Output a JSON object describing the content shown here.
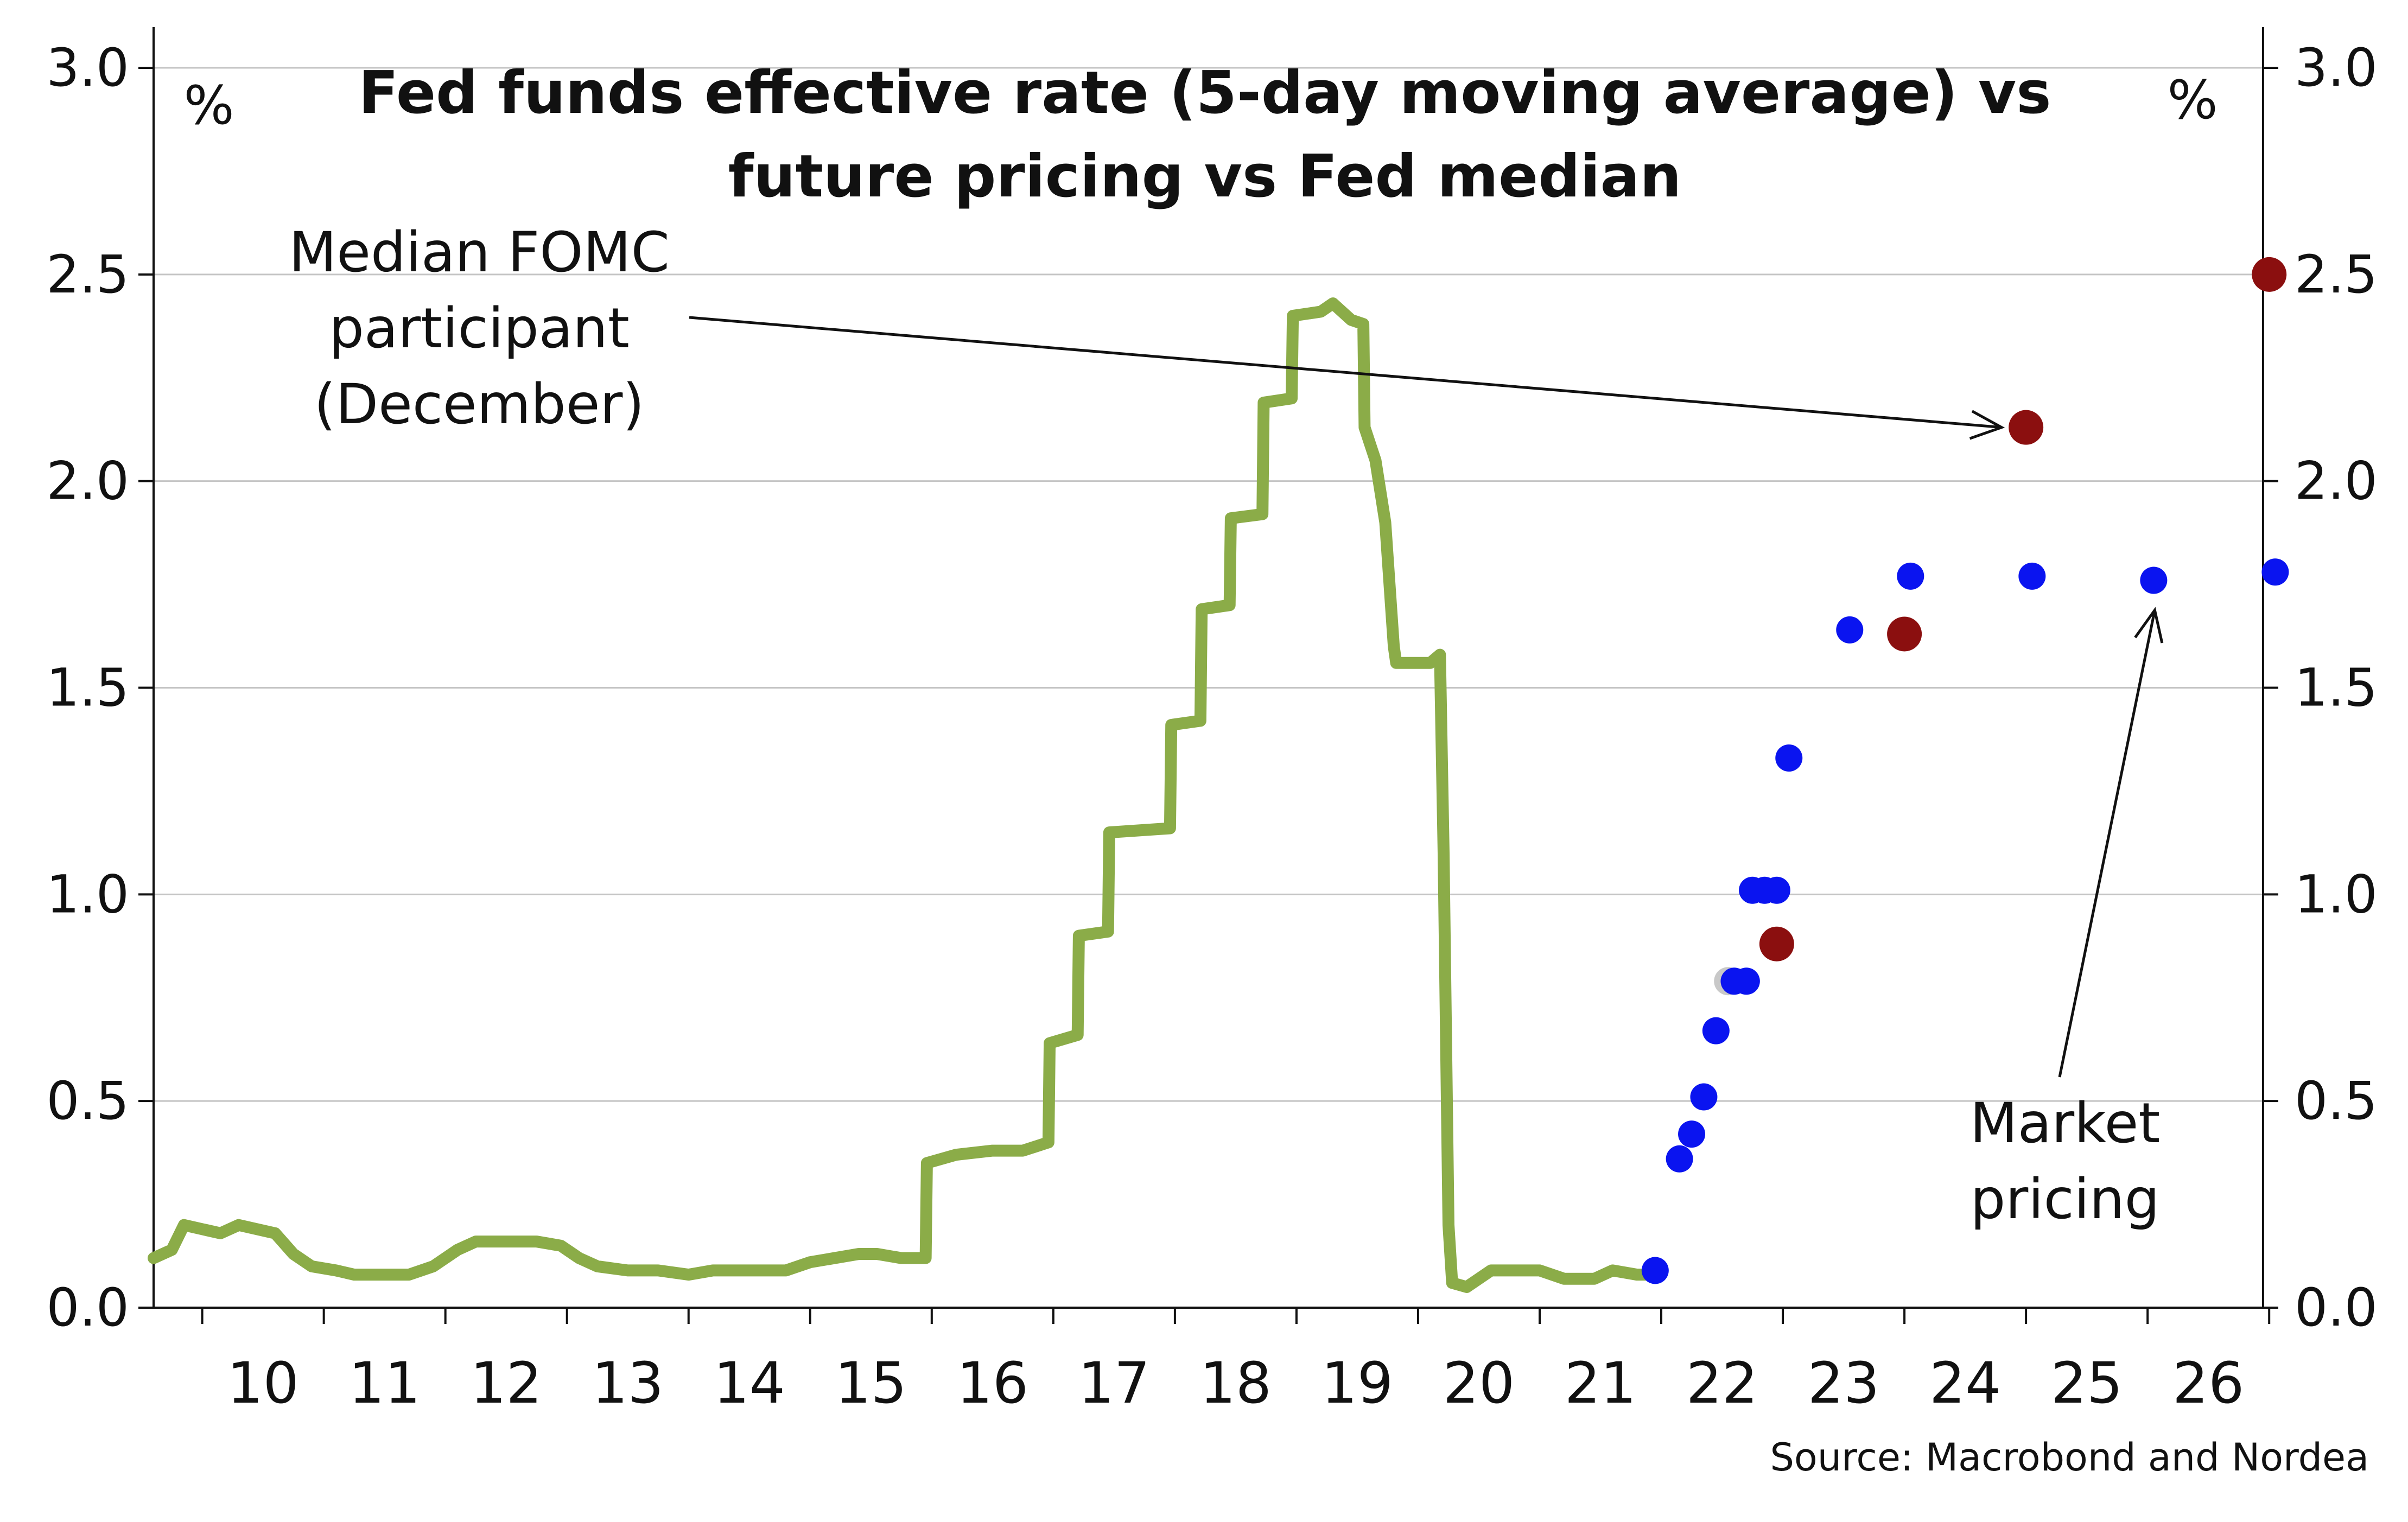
{
  "chart_data": {
    "type": "line",
    "title": "Fed funds effective rate (5-day moving average) vs future pricing vs Fed median",
    "title_lines": [
      "Fed funds effective rate (5-day moving average) vs",
      "future pricing vs Fed median"
    ],
    "ylabel_left": "%",
    "ylabel_right": "%",
    "ylim": [
      0,
      3.0
    ],
    "xlim": [
      2009.6,
      2026.95
    ],
    "yticks": [
      "0.0",
      "0.5",
      "1.0",
      "1.5",
      "2.0",
      "2.5",
      "3.0"
    ],
    "xtick_labels": [
      "10",
      "11",
      "12",
      "13",
      "14",
      "15",
      "16",
      "17",
      "18",
      "19",
      "20",
      "21",
      "22",
      "23",
      "24",
      "25",
      "26"
    ],
    "grid": true,
    "colors": {
      "effective_rate": "#8bac48",
      "market_pricing": "#0a14f0",
      "fomc_median": "#8b0f0f",
      "prior_point": "#c8c8c8"
    },
    "series": [
      {
        "type": "line",
        "points": [
          [
            2009.6,
            0.12
          ],
          [
            2009.75,
            0.14
          ],
          [
            2009.85,
            0.2
          ],
          [
            2010.0,
            0.19
          ],
          [
            2010.15,
            0.18
          ],
          [
            2010.3,
            0.2
          ],
          [
            2010.45,
            0.19
          ],
          [
            2010.6,
            0.18
          ],
          [
            2010.75,
            0.13
          ],
          [
            2010.9,
            0.1
          ],
          [
            2011.1,
            0.09
          ],
          [
            2011.25,
            0.08
          ],
          [
            2011.5,
            0.08
          ],
          [
            2011.7,
            0.08
          ],
          [
            2011.9,
            0.1
          ],
          [
            2012.1,
            0.14
          ],
          [
            2012.25,
            0.16
          ],
          [
            2012.5,
            0.16
          ],
          [
            2012.75,
            0.16
          ],
          [
            2012.95,
            0.15
          ],
          [
            2013.1,
            0.12
          ],
          [
            2013.25,
            0.1
          ],
          [
            2013.5,
            0.09
          ],
          [
            2013.75,
            0.09
          ],
          [
            2014.0,
            0.08
          ],
          [
            2014.2,
            0.09
          ],
          [
            2014.4,
            0.09
          ],
          [
            2014.6,
            0.09
          ],
          [
            2014.8,
            0.09
          ],
          [
            2015.0,
            0.11
          ],
          [
            2015.2,
            0.12
          ],
          [
            2015.4,
            0.13
          ],
          [
            2015.55,
            0.13
          ],
          [
            2015.75,
            0.12
          ],
          [
            2015.95,
            0.12
          ],
          [
            2015.96,
            0.35
          ],
          [
            2016.2,
            0.37
          ],
          [
            2016.5,
            0.38
          ],
          [
            2016.75,
            0.38
          ],
          [
            2016.96,
            0.4
          ],
          [
            2016.97,
            0.64
          ],
          [
            2017.2,
            0.66
          ],
          [
            2017.21,
            0.9
          ],
          [
            2017.45,
            0.91
          ],
          [
            2017.46,
            1.15
          ],
          [
            2017.96,
            1.16
          ],
          [
            2017.97,
            1.41
          ],
          [
            2018.21,
            1.42
          ],
          [
            2018.22,
            1.69
          ],
          [
            2018.45,
            1.7
          ],
          [
            2018.46,
            1.91
          ],
          [
            2018.72,
            1.92
          ],
          [
            2018.73,
            2.19
          ],
          [
            2018.96,
            2.2
          ],
          [
            2018.97,
            2.4
          ],
          [
            2019.2,
            2.41
          ],
          [
            2019.3,
            2.43
          ],
          [
            2019.45,
            2.39
          ],
          [
            2019.55,
            2.38
          ],
          [
            2019.56,
            2.13
          ],
          [
            2019.65,
            2.05
          ],
          [
            2019.73,
            1.9
          ],
          [
            2019.8,
            1.6
          ],
          [
            2019.82,
            1.56
          ],
          [
            2020.1,
            1.56
          ],
          [
            2020.18,
            1.58
          ],
          [
            2020.21,
            1.1
          ],
          [
            2020.25,
            0.2
          ],
          [
            2020.28,
            0.06
          ],
          [
            2020.4,
            0.05
          ],
          [
            2020.6,
            0.09
          ],
          [
            2020.8,
            0.09
          ],
          [
            2021.0,
            0.09
          ],
          [
            2021.2,
            0.07
          ],
          [
            2021.45,
            0.07
          ],
          [
            2021.6,
            0.09
          ],
          [
            2021.8,
            0.08
          ],
          [
            2021.95,
            0.08
          ]
        ]
      },
      {
        "type": "scatter",
        "points": [
          [
            2021.95,
            0.09
          ],
          [
            2022.15,
            0.36
          ],
          [
            2022.25,
            0.42
          ],
          [
            2022.35,
            0.51
          ],
          [
            2022.45,
            0.67
          ],
          [
            2022.6,
            0.79
          ],
          [
            2022.7,
            0.79
          ],
          [
            2022.75,
            1.01
          ],
          [
            2022.85,
            1.01
          ],
          [
            2022.95,
            1.01
          ],
          [
            2023.05,
            1.33
          ],
          [
            2023.55,
            1.64
          ],
          [
            2024.05,
            1.77
          ],
          [
            2025.05,
            1.77
          ],
          [
            2026.05,
            1.76
          ],
          [
            2027.05,
            1.78
          ]
        ]
      },
      {
        "type": "scatter",
        "points": [
          [
            2022.95,
            0.88
          ],
          [
            2024.0,
            1.63
          ],
          [
            2025.0,
            2.13
          ],
          [
            2027.0,
            2.5
          ]
        ]
      },
      {
        "type": "scatter",
        "points": [
          [
            2022.55,
            0.79
          ]
        ]
      }
    ],
    "annotations": [
      {
        "lines": [
          "Median FOMC",
          "participant",
          "(December)"
        ],
        "points_to": [
          2025.0,
          2.13
        ]
      },
      {
        "lines": [
          "Market",
          "pricing"
        ],
        "points_to": [
          2026.05,
          1.76
        ]
      }
    ]
  },
  "source": "Source: Macrobond and Nordea"
}
